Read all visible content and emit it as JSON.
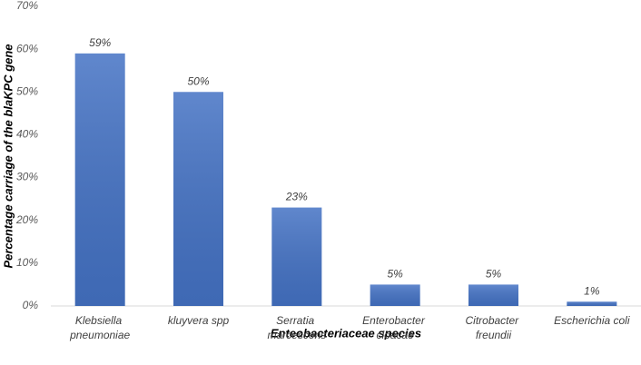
{
  "chart_data": {
    "type": "bar",
    "x_label": "Enteobacteriaceae species",
    "y_label": "Percentage carriage of the blaKPC gene",
    "categories": [
      "Klebsiella pneumoniae",
      "kluyvera spp",
      "Serratia marcescens",
      "Enterobacter cloacae",
      "Citrobacter freundii",
      "Escherichia coli"
    ],
    "values": [
      59,
      50,
      23,
      5,
      5,
      1
    ],
    "value_labels": [
      "59%",
      "50%",
      "23%",
      "5%",
      "5%",
      "1%"
    ],
    "color": "#4472c4",
    "ylim": [
      0,
      70
    ],
    "yticks": [
      {
        "value": 0,
        "label": "0%"
      },
      {
        "value": 10,
        "label": "10%"
      },
      {
        "value": 20,
        "label": "20%"
      },
      {
        "value": 30,
        "label": "30%"
      },
      {
        "value": 40,
        "label": "40%"
      },
      {
        "value": 50,
        "label": "50%"
      },
      {
        "value": 60,
        "label": "60%"
      },
      {
        "value": 70,
        "label": "70%"
      }
    ],
    "grid": false
  }
}
